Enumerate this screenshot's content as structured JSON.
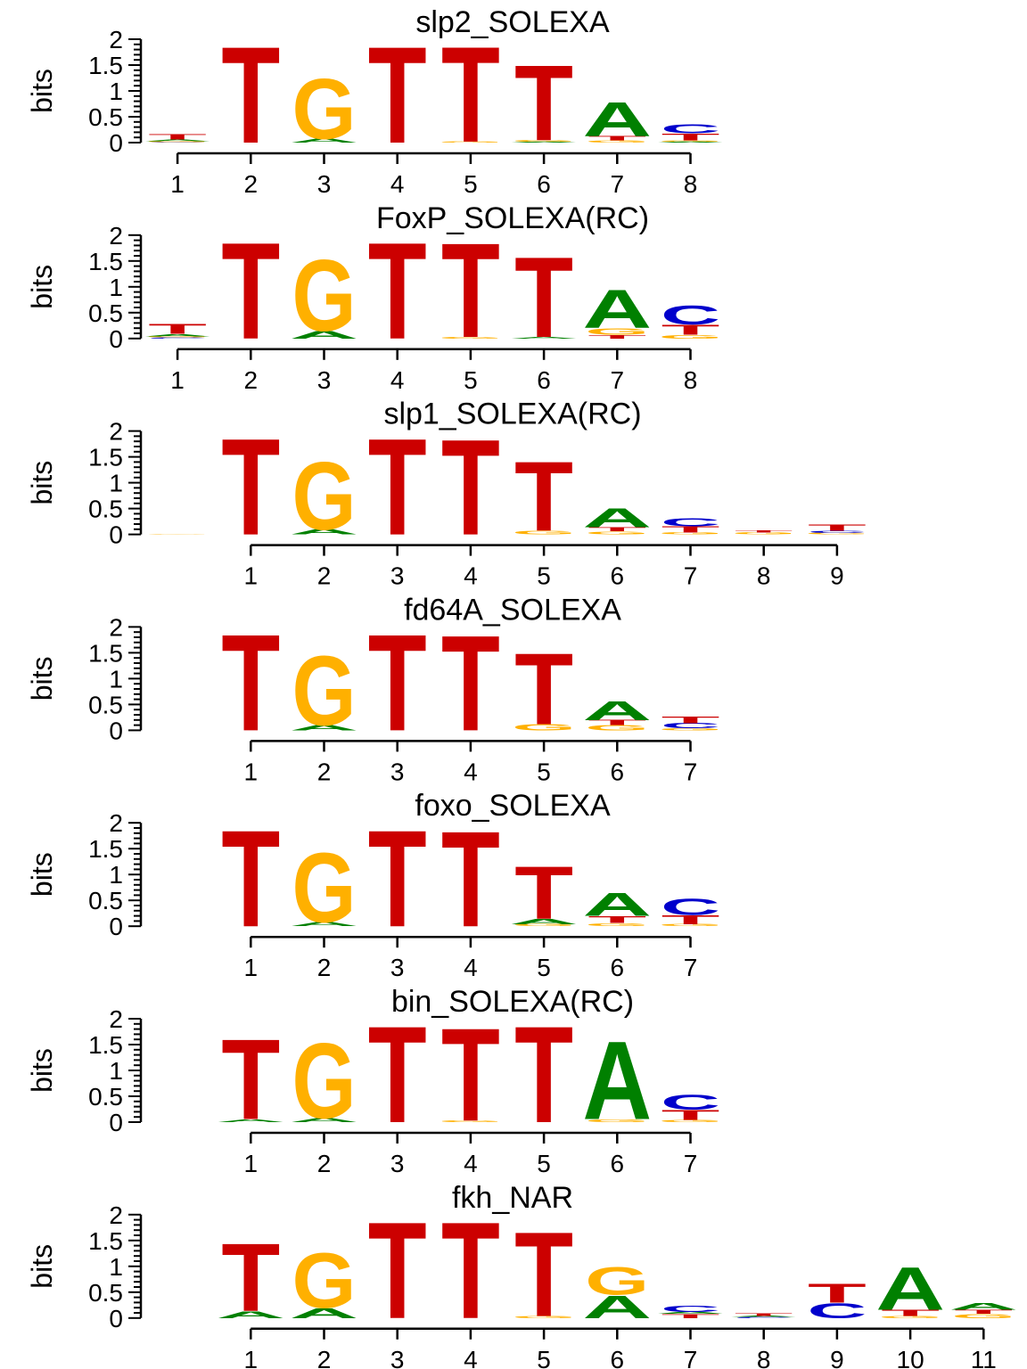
{
  "colors": {
    "A": "#008000",
    "C": "#0000cc",
    "G": "#ffb000",
    "T": "#cc0000",
    "axis": "#000000"
  },
  "chart_data": [
    {
      "type": "sequence-logo",
      "title": "slp2_SOLEXA",
      "ylabel": "bits",
      "ylim": [
        0,
        2
      ],
      "yticks": [
        "0",
        "0.5",
        "1",
        "1.5",
        "2"
      ],
      "offset": 0,
      "positions": [
        "1",
        "2",
        "3",
        "4",
        "5",
        "6",
        "7",
        "8"
      ],
      "columns": [
        [
          [
            "C",
            0.01
          ],
          [
            "G",
            0.02
          ],
          [
            "A",
            0.03
          ],
          [
            "T",
            0.1
          ]
        ],
        [
          [
            "T",
            1.92
          ]
        ],
        [
          [
            "A",
            0.08
          ],
          [
            "G",
            1.2
          ]
        ],
        [
          [
            "T",
            1.92
          ]
        ],
        [
          [
            "G",
            0.02
          ],
          [
            "T",
            1.9
          ]
        ],
        [
          [
            "A",
            0.02
          ],
          [
            "G",
            0.03
          ],
          [
            "T",
            1.5
          ]
        ],
        [
          [
            "G",
            0.04
          ],
          [
            "T",
            0.09
          ],
          [
            "A",
            0.68
          ]
        ],
        [
          [
            "A",
            0.02
          ],
          [
            "G",
            0.02
          ],
          [
            "T",
            0.14
          ],
          [
            "C",
            0.18
          ]
        ]
      ]
    },
    {
      "type": "sequence-logo",
      "title": "FoxP_SOLEXA(RC)",
      "ylabel": "bits",
      "ylim": [
        0,
        2
      ],
      "yticks": [
        "0",
        "0.5",
        "1",
        "1.5",
        "2"
      ],
      "offset": 0,
      "positions": [
        "1",
        "2",
        "3",
        "4",
        "5",
        "6",
        "7",
        "8"
      ],
      "columns": [
        [
          [
            "C",
            0.02
          ],
          [
            "G",
            0.02
          ],
          [
            "A",
            0.05
          ],
          [
            "T",
            0.2
          ]
        ],
        [
          [
            "T",
            1.92
          ]
        ],
        [
          [
            "A",
            0.15
          ],
          [
            "G",
            1.42
          ]
        ],
        [
          [
            "T",
            1.92
          ]
        ],
        [
          [
            "G",
            0.03
          ],
          [
            "T",
            1.88
          ]
        ],
        [
          [
            "A",
            0.03
          ],
          [
            "T",
            1.6
          ]
        ],
        [
          [
            "T",
            0.07
          ],
          [
            "G",
            0.13
          ],
          [
            "A",
            0.76
          ]
        ],
        [
          [
            "G",
            0.07
          ],
          [
            "T",
            0.2
          ],
          [
            "C",
            0.38
          ]
        ]
      ]
    },
    {
      "type": "sequence-logo",
      "title": "slp1_SOLEXA(RC)",
      "ylabel": "bits",
      "ylim": [
        0,
        2
      ],
      "yticks": [
        "0",
        "0.5",
        "1",
        "1.5",
        "2"
      ],
      "offset": 1,
      "positions": [
        "1",
        "2",
        "3",
        "4",
        "5",
        "6",
        "7",
        "8",
        "9"
      ],
      "columns": [
        [
          [
            "G",
            0.01
          ]
        ],
        [
          [
            "T",
            1.92
          ]
        ],
        [
          [
            "A",
            0.1
          ],
          [
            "G",
            1.35
          ]
        ],
        [
          [
            "T",
            1.92
          ]
        ],
        [
          [
            "T",
            1.9
          ]
        ],
        [
          [
            "G",
            0.07
          ],
          [
            "T",
            1.38
          ]
        ],
        [
          [
            "G",
            0.06
          ],
          [
            "T",
            0.08
          ],
          [
            "A",
            0.38
          ]
        ],
        [
          [
            "G",
            0.04
          ],
          [
            "T",
            0.12
          ],
          [
            "C",
            0.16
          ]
        ],
        [
          [
            "G",
            0.04
          ],
          [
            "T",
            0.04
          ]
        ],
        [
          [
            "G",
            0.03
          ],
          [
            "C",
            0.04
          ],
          [
            "T",
            0.12
          ]
        ]
      ]
    },
    {
      "type": "sequence-logo",
      "title": "fd64A_SOLEXA",
      "ylabel": "bits",
      "ylim": [
        0,
        2
      ],
      "yticks": [
        "0",
        "0.5",
        "1",
        "1.5",
        "2"
      ],
      "offset": 1,
      "positions": [
        "1",
        "2",
        "3",
        "4",
        "5",
        "6",
        "7"
      ],
      "columns": [
        [],
        [
          [
            "T",
            1.92
          ]
        ],
        [
          [
            "A",
            0.1
          ],
          [
            "G",
            1.38
          ]
        ],
        [
          [
            "T",
            1.92
          ]
        ],
        [
          [
            "T",
            1.9
          ]
        ],
        [
          [
            "G",
            0.12
          ],
          [
            "T",
            1.42
          ]
        ],
        [
          [
            "G",
            0.1
          ],
          [
            "T",
            0.1
          ],
          [
            "A",
            0.38
          ]
        ],
        [
          [
            "G",
            0.04
          ],
          [
            "C",
            0.1
          ],
          [
            "T",
            0.14
          ]
        ]
      ]
    },
    {
      "type": "sequence-logo",
      "title": "foxo_SOLEXA",
      "ylabel": "bits",
      "ylim": [
        0,
        2
      ],
      "yticks": [
        "0",
        "0.5",
        "1",
        "1.5",
        "2"
      ],
      "offset": 1,
      "positions": [
        "1",
        "2",
        "3",
        "4",
        "5",
        "6",
        "7"
      ],
      "columns": [
        [],
        [
          [
            "T",
            1.92
          ]
        ],
        [
          [
            "A",
            0.08
          ],
          [
            "G",
            1.38
          ]
        ],
        [
          [
            "T",
            1.92
          ]
        ],
        [
          [
            "T",
            1.9
          ]
        ],
        [
          [
            "G",
            0.04
          ],
          [
            "A",
            0.1
          ],
          [
            "T",
            1.05
          ]
        ],
        [
          [
            "G",
            0.06
          ],
          [
            "T",
            0.14
          ],
          [
            "A",
            0.46
          ]
        ],
        [
          [
            "G",
            0.04
          ],
          [
            "T",
            0.18
          ],
          [
            "C",
            0.32
          ]
        ]
      ]
    },
    {
      "type": "sequence-logo",
      "title": "bin_SOLEXA(RC)",
      "ylabel": "bits",
      "ylim": [
        0,
        2
      ],
      "yticks": [
        "0",
        "0.5",
        "1",
        "1.5",
        "2"
      ],
      "offset": 1,
      "positions": [
        "1",
        "2",
        "3",
        "4",
        "5",
        "6",
        "7"
      ],
      "columns": [
        [],
        [
          [
            "A",
            0.06
          ],
          [
            "T",
            1.6
          ]
        ],
        [
          [
            "A",
            0.08
          ],
          [
            "G",
            1.5
          ]
        ],
        [
          [
            "T",
            1.92
          ]
        ],
        [
          [
            "G",
            0.03
          ],
          [
            "T",
            1.85
          ]
        ],
        [
          [
            "T",
            1.92
          ]
        ],
        [
          [
            "G",
            0.06
          ],
          [
            "A",
            1.55
          ]
        ],
        [
          [
            "G",
            0.04
          ],
          [
            "T",
            0.2
          ],
          [
            "C",
            0.3
          ]
        ]
      ]
    },
    {
      "type": "sequence-logo",
      "title": "fkh_NAR",
      "ylabel": "bits",
      "ylim": [
        0,
        2
      ],
      "yticks": [
        "0",
        "0.5",
        "1",
        "1.5",
        "2"
      ],
      "offset": 1,
      "positions": [
        "1",
        "2",
        "3",
        "4",
        "5",
        "6",
        "7",
        "8",
        "9",
        "10",
        "11"
      ],
      "columns": [
        [],
        [
          [
            "A",
            0.14
          ],
          [
            "T",
            1.35
          ]
        ],
        [
          [
            "A",
            0.2
          ],
          [
            "G",
            1.1
          ]
        ],
        [
          [
            "T",
            1.92
          ]
        ],
        [
          [
            "T",
            1.92
          ]
        ],
        [
          [
            "G",
            0.04
          ],
          [
            "T",
            1.68
          ]
        ],
        [
          [
            "A",
            0.45
          ],
          [
            "G",
            0.55
          ]
        ],
        [
          [
            "T",
            0.08
          ],
          [
            "A",
            0.04
          ],
          [
            "C",
            0.12
          ]
        ],
        [
          [
            "C",
            0.02
          ],
          [
            "A",
            0.02
          ],
          [
            "T",
            0.06
          ]
        ],
        [
          [
            "C",
            0.3
          ],
          [
            "T",
            0.38
          ]
        ],
        [
          [
            "G",
            0.04
          ],
          [
            "T",
            0.12
          ],
          [
            "A",
            0.85
          ]
        ],
        [
          [
            "G",
            0.08
          ],
          [
            "T",
            0.08
          ],
          [
            "A",
            0.14
          ]
        ]
      ]
    }
  ]
}
